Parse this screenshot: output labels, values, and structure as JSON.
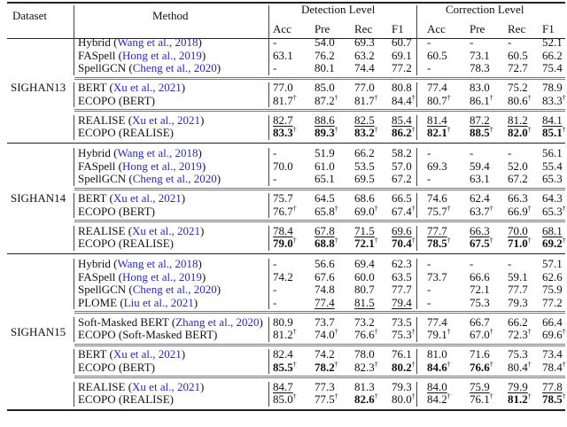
{
  "header": {
    "dataset": "Dataset",
    "method": "Method",
    "detection_level": "Detection Level",
    "correction_level": "Correction Level",
    "metrics": [
      "Acc",
      "Pre",
      "Rec",
      "F1",
      "Acc",
      "Pre",
      "Rec",
      "F1"
    ]
  },
  "dagger": "†",
  "datasets": [
    {
      "name": "SIGHAN13",
      "blocks": [
        [
          {
            "name": "Hybrid",
            "cite": "Wang et al., 2018",
            "cells": [
              {
                "v": "-"
              },
              {
                "v": "54.0"
              },
              {
                "v": "69.3"
              },
              {
                "v": "60.7"
              },
              {
                "v": "-"
              },
              {
                "v": "-"
              },
              {
                "v": "-"
              },
              {
                "v": "52.1"
              }
            ]
          },
          {
            "name": "FASpell",
            "cite": "Hong et al., 2019",
            "cells": [
              {
                "v": "63.1"
              },
              {
                "v": "76.2"
              },
              {
                "v": "63.2"
              },
              {
                "v": "69.1"
              },
              {
                "v": "60.5"
              },
              {
                "v": "73.1"
              },
              {
                "v": "60.5"
              },
              {
                "v": "66.2"
              }
            ]
          },
          {
            "name": "SpellGCN",
            "cite": "Cheng et al., 2020",
            "cells": [
              {
                "v": "-"
              },
              {
                "v": "80.1"
              },
              {
                "v": "74.4"
              },
              {
                "v": "77.2"
              },
              {
                "v": "-"
              },
              {
                "v": "78.3"
              },
              {
                "v": "72.7"
              },
              {
                "v": "75.4"
              }
            ]
          }
        ],
        [
          {
            "name": "BERT",
            "cite": "Xu et al., 2021",
            "cells": [
              {
                "v": "77.0"
              },
              {
                "v": "85.0"
              },
              {
                "v": "77.0"
              },
              {
                "v": "80.8"
              },
              {
                "v": "77.4"
              },
              {
                "v": "83.0"
              },
              {
                "v": "75.2"
              },
              {
                "v": "78.9"
              }
            ]
          },
          {
            "name": "ECOPO (BERT)",
            "cells": [
              {
                "v": "81.7",
                "d": true
              },
              {
                "v": "87.2",
                "d": true
              },
              {
                "v": "81.7",
                "d": true
              },
              {
                "v": "84.4",
                "d": true
              },
              {
                "v": "80.7",
                "d": true
              },
              {
                "v": "86.1",
                "d": true
              },
              {
                "v": "80.6",
                "d": true
              },
              {
                "v": "83.3",
                "d": true
              }
            ]
          }
        ],
        [
          {
            "name": "REALISE",
            "cite": "Xu et al., 2021",
            "cells": [
              {
                "v": "82.7",
                "u": true
              },
              {
                "v": "88.6",
                "u": true
              },
              {
                "v": "82.5",
                "u": true
              },
              {
                "v": "85.4",
                "u": true
              },
              {
                "v": "81.4",
                "u": true
              },
              {
                "v": "87.2",
                "u": true
              },
              {
                "v": "81.2",
                "u": true
              },
              {
                "v": "84.1",
                "u": true
              }
            ]
          },
          {
            "name": "ECOPO (REALISE)",
            "cells": [
              {
                "v": "83.3",
                "b": true,
                "d": true
              },
              {
                "v": "89.3",
                "b": true,
                "d": true
              },
              {
                "v": "83.2",
                "b": true,
                "d": true
              },
              {
                "v": "86.2",
                "b": true,
                "d": true
              },
              {
                "v": "82.1",
                "b": true,
                "d": true
              },
              {
                "v": "88.5",
                "b": true,
                "d": true
              },
              {
                "v": "82.0",
                "b": true,
                "d": true
              },
              {
                "v": "85.1",
                "b": true,
                "d": true
              }
            ]
          }
        ]
      ]
    },
    {
      "name": "SIGHAN14",
      "blocks": [
        [
          {
            "name": "Hybrid",
            "cite": "Wang et al., 2018",
            "cells": [
              {
                "v": "-"
              },
              {
                "v": "51.9"
              },
              {
                "v": "66.2"
              },
              {
                "v": "58.2"
              },
              {
                "v": "-"
              },
              {
                "v": "-"
              },
              {
                "v": "-"
              },
              {
                "v": "56.1"
              }
            ]
          },
          {
            "name": "FASpell",
            "cite": "Hong et al., 2019",
            "cells": [
              {
                "v": "70.0"
              },
              {
                "v": "61.0"
              },
              {
                "v": "53.5"
              },
              {
                "v": "57.0"
              },
              {
                "v": "69.3"
              },
              {
                "v": "59.4"
              },
              {
                "v": "52.0"
              },
              {
                "v": "55.4"
              }
            ]
          },
          {
            "name": "SpellGCN",
            "cite": "Cheng et al., 2020",
            "cells": [
              {
                "v": "-"
              },
              {
                "v": "65.1"
              },
              {
                "v": "69.5"
              },
              {
                "v": "67.2"
              },
              {
                "v": "-"
              },
              {
                "v": "63.1"
              },
              {
                "v": "67.2"
              },
              {
                "v": "65.3"
              }
            ]
          }
        ],
        [
          {
            "name": "BERT",
            "cite": "Xu et al., 2021",
            "cells": [
              {
                "v": "75.7"
              },
              {
                "v": "64.5"
              },
              {
                "v": "68.6"
              },
              {
                "v": "66.5"
              },
              {
                "v": "74.6"
              },
              {
                "v": "62.4"
              },
              {
                "v": "66.3"
              },
              {
                "v": "64.3"
              }
            ]
          },
          {
            "name": "ECOPO (BERT)",
            "cells": [
              {
                "v": "76.7",
                "d": true
              },
              {
                "v": "65.8",
                "d": true
              },
              {
                "v": "69.0",
                "d": true
              },
              {
                "v": "67.4",
                "d": true
              },
              {
                "v": "75.7",
                "d": true
              },
              {
                "v": "63.7",
                "d": true
              },
              {
                "v": "66.9",
                "d": true
              },
              {
                "v": "65.3",
                "d": true
              }
            ]
          }
        ],
        [
          {
            "name": "REALISE",
            "cite": "Xu et al., 2021",
            "cells": [
              {
                "v": "78.4",
                "u": true
              },
              {
                "v": "67.8",
                "u": true
              },
              {
                "v": "71.5",
                "u": true
              },
              {
                "v": "69.6",
                "u": true
              },
              {
                "v": "77.7",
                "u": true
              },
              {
                "v": "66.3",
                "u": true
              },
              {
                "v": "70.0",
                "u": true
              },
              {
                "v": "68.1",
                "u": true
              }
            ]
          },
          {
            "name": "ECOPO (REALISE)",
            "cells": [
              {
                "v": "79.0",
                "b": true,
                "d": true
              },
              {
                "v": "68.8",
                "b": true,
                "d": true
              },
              {
                "v": "72.1",
                "b": true,
                "d": true
              },
              {
                "v": "70.4",
                "b": true,
                "d": true
              },
              {
                "v": "78.5",
                "b": true,
                "d": true
              },
              {
                "v": "67.5",
                "b": true,
                "d": true
              },
              {
                "v": "71.0",
                "b": true,
                "d": true
              },
              {
                "v": "69.2",
                "b": true,
                "d": true
              }
            ]
          }
        ]
      ]
    },
    {
      "name": "SIGHAN15",
      "blocks": [
        [
          {
            "name": "Hybrid",
            "cite": "Wang et al., 2018",
            "cells": [
              {
                "v": "-"
              },
              {
                "v": "56.6"
              },
              {
                "v": "69.4"
              },
              {
                "v": "62.3"
              },
              {
                "v": "-"
              },
              {
                "v": "-"
              },
              {
                "v": "-"
              },
              {
                "v": "57.1"
              }
            ]
          },
          {
            "name": "FASpell",
            "cite": "Hong et al., 2019",
            "cells": [
              {
                "v": "74.2"
              },
              {
                "v": "67.6"
              },
              {
                "v": "60.0"
              },
              {
                "v": "63.5"
              },
              {
                "v": "73.7"
              },
              {
                "v": "66.6"
              },
              {
                "v": "59.1"
              },
              {
                "v": "62.6"
              }
            ]
          },
          {
            "name": "SpellGCN",
            "cite": "Cheng et al., 2020",
            "cells": [
              {
                "v": "-"
              },
              {
                "v": "74.8"
              },
              {
                "v": "80.7"
              },
              {
                "v": "77.7"
              },
              {
                "v": "-"
              },
              {
                "v": "72.1"
              },
              {
                "v": "77.7"
              },
              {
                "v": "75.9"
              }
            ]
          },
          {
            "name": "PLOME",
            "cite": "Liu et al., 2021",
            "cells": [
              {
                "v": "-"
              },
              {
                "v": "77.4",
                "u": true
              },
              {
                "v": "81.5",
                "u": true
              },
              {
                "v": "79.4",
                "u": true
              },
              {
                "v": "-"
              },
              {
                "v": "75.3"
              },
              {
                "v": "79.3"
              },
              {
                "v": "77.2"
              }
            ]
          }
        ],
        [
          {
            "name": "Soft-Masked BERT",
            "cite": "Zhang et al., 2020",
            "cells": [
              {
                "v": "80.9"
              },
              {
                "v": "73.7"
              },
              {
                "v": "73.2"
              },
              {
                "v": "73.5"
              },
              {
                "v": "77.4"
              },
              {
                "v": "66.7"
              },
              {
                "v": "66.2"
              },
              {
                "v": "66.4"
              }
            ]
          },
          {
            "name": "ECOPO (Soft-Masked BERT)",
            "cells": [
              {
                "v": "81.2",
                "d": true
              },
              {
                "v": "74.0",
                "d": true
              },
              {
                "v": "76.6",
                "d": true
              },
              {
                "v": "75.3",
                "d": true
              },
              {
                "v": "79.1",
                "d": true
              },
              {
                "v": "67.0",
                "d": true
              },
              {
                "v": "72.3",
                "d": true
              },
              {
                "v": "69.6",
                "d": true
              }
            ]
          }
        ],
        [
          {
            "name": "BERT",
            "cite": "Xu et al., 2021",
            "cells": [
              {
                "v": "82.4"
              },
              {
                "v": "74.2"
              },
              {
                "v": "78.0"
              },
              {
                "v": "76.1"
              },
              {
                "v": "81.0"
              },
              {
                "v": "71.6"
              },
              {
                "v": "75.3"
              },
              {
                "v": "73.4"
              }
            ]
          },
          {
            "name": "ECOPO (BERT)",
            "cells": [
              {
                "v": "85.5",
                "b": true,
                "d": true
              },
              {
                "v": "78.2",
                "b": true,
                "d": true
              },
              {
                "v": "82.3",
                "d": true
              },
              {
                "v": "80.2",
                "b": true,
                "d": true
              },
              {
                "v": "84.6",
                "b": true,
                "d": true
              },
              {
                "v": "76.6",
                "b": true,
                "d": true
              },
              {
                "v": "80.4",
                "d": true
              },
              {
                "v": "78.4",
                "d": true
              }
            ]
          }
        ],
        [
          {
            "name": "REALISE",
            "cite": "Xu et al., 2021",
            "cells": [
              {
                "v": "84.7",
                "u": true
              },
              {
                "v": "77.3"
              },
              {
                "v": "81.3"
              },
              {
                "v": "79.3"
              },
              {
                "v": "84.0",
                "u": true
              },
              {
                "v": "75.9",
                "u": true
              },
              {
                "v": "79.9",
                "u": true
              },
              {
                "v": "77.8",
                "u": true
              }
            ]
          },
          {
            "name": "ECOPO (REALISE)",
            "cells": [
              {
                "v": "85.0",
                "d": true
              },
              {
                "v": "77.5",
                "d": true
              },
              {
                "v": "82.6",
                "b": true,
                "d": true
              },
              {
                "v": "80.0",
                "d": true
              },
              {
                "v": "84.2",
                "d": true
              },
              {
                "v": "76.1",
                "d": true
              },
              {
                "v": "81.2",
                "b": true,
                "d": true
              },
              {
                "v": "78.5",
                "b": true,
                "d": true
              }
            ]
          }
        ]
      ]
    }
  ]
}
